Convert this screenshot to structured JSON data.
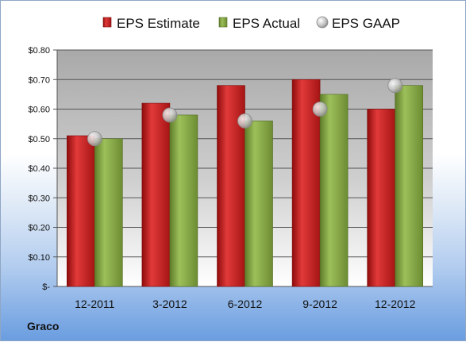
{
  "company": "Graco",
  "colors": {
    "estimate": "#cc1f1f",
    "actual": "#86a844",
    "gaap": "#b8b8b8"
  },
  "chart_data": {
    "type": "bar",
    "categories": [
      "12-2011",
      "3-2012",
      "6-2012",
      "9-2012",
      "12-2012"
    ],
    "series": [
      {
        "name": "EPS Estimate",
        "values": [
          0.51,
          0.62,
          0.68,
          0.7,
          0.6
        ]
      },
      {
        "name": "EPS Actual",
        "values": [
          0.5,
          0.58,
          0.56,
          0.65,
          0.68
        ]
      },
      {
        "name": "EPS GAAP",
        "values": [
          0.5,
          0.58,
          0.56,
          0.6,
          0.68
        ],
        "marker": "circle"
      }
    ],
    "ylim": [
      0,
      0.8
    ],
    "yticks": [
      0,
      0.1,
      0.2,
      0.3,
      0.4,
      0.5,
      0.6,
      0.7,
      0.8
    ],
    "ytick_labels": [
      "$-",
      "$0.10",
      "$0.20",
      "$0.30",
      "$0.40",
      "$0.50",
      "$0.60",
      "$0.70",
      "$0.80"
    ],
    "grid": true,
    "legend_position": "top"
  }
}
